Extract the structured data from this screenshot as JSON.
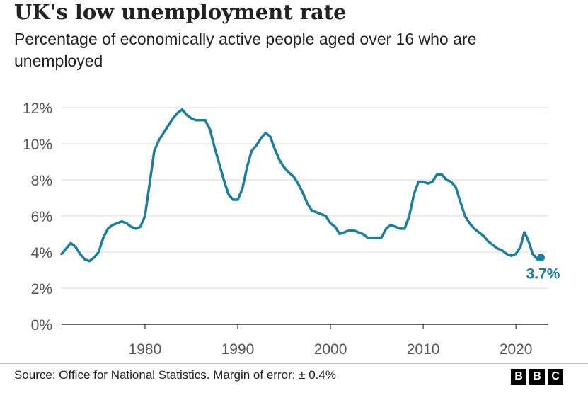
{
  "header": {
    "title": "UK's low unemployment rate",
    "subtitle": "Percentage of economically active people aged over 16 who are unemployed"
  },
  "footer": {
    "source": "Source: Office for National Statistics. Margin of error: ± 0.4%",
    "logo_letters": [
      "B",
      "B",
      "C"
    ]
  },
  "colors": {
    "line": "#1a7f9e",
    "grid": "#d9d9d9",
    "axis": "#333333",
    "tick_text": "#555555",
    "background": "#ffffff"
  },
  "chart_data": {
    "type": "line",
    "title": "UK's low unemployment rate",
    "subtitle": "Percentage of economically active people aged over 16 who are unemployed",
    "xlabel": "",
    "ylabel": "",
    "xlim": [
      1971,
      2023.5
    ],
    "ylim": [
      0,
      12
    ],
    "x_ticks": [
      1980,
      1990,
      2000,
      2010,
      2020
    ],
    "y_ticks": [
      0,
      2,
      4,
      6,
      8,
      10,
      12
    ],
    "y_tick_labels": [
      "0%",
      "2%",
      "4%",
      "6%",
      "8%",
      "10%",
      "12%"
    ],
    "grid": true,
    "legend": "none",
    "series": [
      {
        "x": [
          1971.0,
          1971.5,
          1972.0,
          1972.5,
          1973.0,
          1973.5,
          1974.0,
          1974.5,
          1975.0,
          1975.5,
          1976.0,
          1976.5,
          1977.0,
          1977.5,
          1978.0,
          1978.5,
          1979.0,
          1979.5,
          1980.0,
          1980.5,
          1981.0,
          1981.5,
          1982.0,
          1982.5,
          1983.0,
          1983.5,
          1984.0,
          1984.5,
          1985.0,
          1985.5,
          1986.0,
          1986.5,
          1987.0,
          1987.5,
          1988.0,
          1988.5,
          1989.0,
          1989.5,
          1990.0,
          1990.5,
          1991.0,
          1991.5,
          1992.0,
          1992.5,
          1993.0,
          1993.5,
          1994.0,
          1994.5,
          1995.0,
          1995.5,
          1996.0,
          1996.5,
          1997.0,
          1997.5,
          1998.0,
          1998.5,
          1999.0,
          1999.5,
          2000.0,
          2000.5,
          2001.0,
          2001.5,
          2002.0,
          2002.5,
          2003.0,
          2003.5,
          2004.0,
          2004.5,
          2005.0,
          2005.5,
          2006.0,
          2006.5,
          2007.0,
          2007.5,
          2008.0,
          2008.5,
          2009.0,
          2009.5,
          2010.0,
          2010.5,
          2011.0,
          2011.5,
          2012.0,
          2012.5,
          2013.0,
          2013.5,
          2014.0,
          2014.5,
          2015.0,
          2015.5,
          2016.0,
          2016.5,
          2017.0,
          2017.5,
          2018.0,
          2018.5,
          2019.0,
          2019.5,
          2020.0,
          2020.5,
          2020.9,
          2021.2,
          2021.5,
          2021.8,
          2022.0,
          2022.3,
          2022.7
        ],
        "values": [
          3.9,
          4.2,
          4.5,
          4.3,
          3.9,
          3.6,
          3.5,
          3.7,
          4.0,
          4.8,
          5.3,
          5.5,
          5.6,
          5.7,
          5.6,
          5.4,
          5.3,
          5.4,
          6.0,
          7.8,
          9.6,
          10.2,
          10.6,
          11.0,
          11.4,
          11.7,
          11.9,
          11.6,
          11.4,
          11.3,
          11.3,
          11.3,
          10.8,
          9.8,
          8.9,
          8.0,
          7.2,
          6.9,
          6.9,
          7.5,
          8.7,
          9.6,
          9.9,
          10.3,
          10.6,
          10.4,
          9.7,
          9.1,
          8.7,
          8.4,
          8.2,
          7.8,
          7.3,
          6.7,
          6.3,
          6.2,
          6.1,
          6.0,
          5.6,
          5.4,
          5.0,
          5.1,
          5.2,
          5.2,
          5.1,
          5.0,
          4.8,
          4.8,
          4.8,
          4.8,
          5.3,
          5.5,
          5.4,
          5.3,
          5.3,
          6.0,
          7.2,
          7.9,
          7.9,
          7.8,
          7.9,
          8.3,
          8.3,
          8.0,
          7.9,
          7.6,
          6.8,
          6.0,
          5.6,
          5.3,
          5.1,
          4.9,
          4.6,
          4.4,
          4.2,
          4.1,
          3.9,
          3.8,
          3.9,
          4.3,
          5.1,
          4.8,
          4.4,
          3.9,
          3.8,
          3.6,
          3.7
        ]
      }
    ],
    "annotations": [
      {
        "x": 2022.7,
        "y": 3.7,
        "text": "3.7%"
      }
    ]
  }
}
